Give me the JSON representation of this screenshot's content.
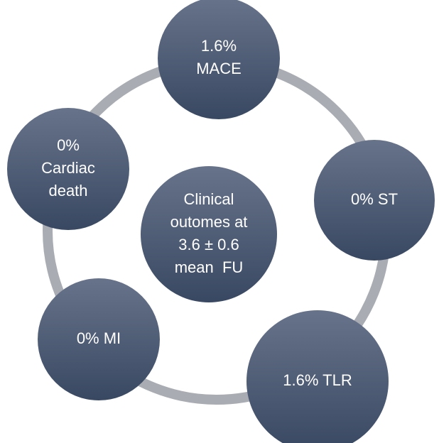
{
  "center": {
    "lines": [
      "Clinical",
      "outomes at",
      "3.6 ± 0.6",
      "mean  FU"
    ]
  },
  "nodes": [
    {
      "lines": [
        "1.6%",
        "MACE"
      ]
    },
    {
      "lines": [
        "0% ST"
      ]
    },
    {
      "lines": [
        "1.6% TLR"
      ]
    },
    {
      "lines": [
        "0% MI"
      ]
    },
    {
      "lines": [
        "0%",
        "Cardiac",
        "death"
      ]
    }
  ]
}
